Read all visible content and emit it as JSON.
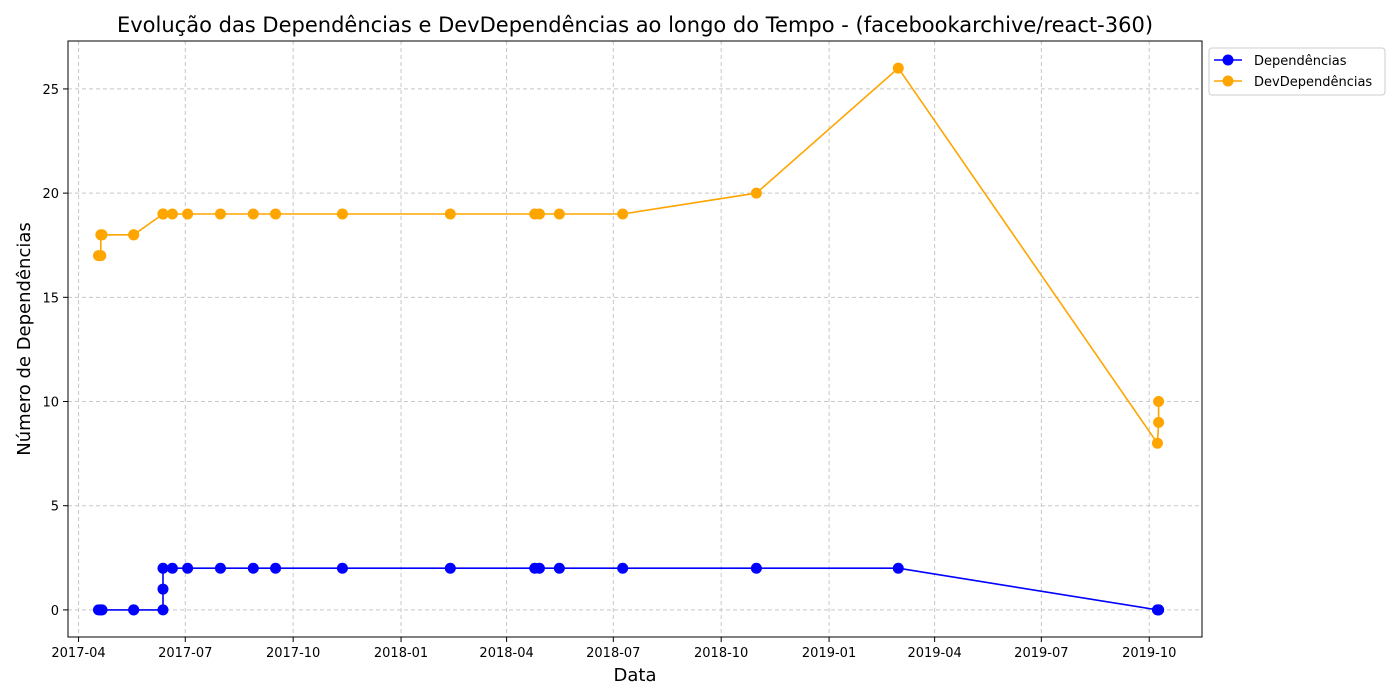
{
  "chart_data": {
    "type": "line",
    "title": "Evolução das Dependências e DevDependências ao longo do Tempo - (facebookarchive/react-360)",
    "xlabel": "Data",
    "ylabel": "Número de Dependências",
    "x_is_date": true,
    "xlim": [
      "2017-03-23",
      "2019-11-15"
    ],
    "ylim": [
      -1.3,
      27.3
    ],
    "x_ticks": [
      "2017-04-01",
      "2017-07-01",
      "2017-10-01",
      "2018-01-01",
      "2018-04-01",
      "2018-07-01",
      "2018-10-01",
      "2019-01-01",
      "2019-04-01",
      "2019-07-01",
      "2019-10-01"
    ],
    "x_tick_labels": [
      "2017-04",
      "2017-07",
      "2017-10",
      "2018-01",
      "2018-04",
      "2018-07",
      "2018-10",
      "2019-01",
      "2019-04",
      "2019-07",
      "2019-10"
    ],
    "y_ticks": [
      0,
      5,
      10,
      15,
      20,
      25
    ],
    "grid": true,
    "legend_position": "top-right, outside plot",
    "series": [
      {
        "name": "Dependências",
        "color": "#0000ff",
        "x": [
          "2017-04-18",
          "2017-04-20",
          "2017-04-20",
          "2017-04-21",
          "2017-05-18",
          "2017-05-18",
          "2017-06-12",
          "2017-06-12",
          "2017-06-12",
          "2017-06-20",
          "2017-07-03",
          "2017-07-31",
          "2017-08-28",
          "2017-09-16",
          "2017-11-12",
          "2018-02-12",
          "2018-04-25",
          "2018-04-29",
          "2018-05-16",
          "2018-07-09",
          "2018-10-31",
          "2019-03-01",
          "2019-10-08",
          "2019-10-09",
          "2019-10-09"
        ],
        "values": [
          0,
          0,
          0,
          0,
          0,
          0,
          0,
          1,
          2,
          2,
          2,
          2,
          2,
          2,
          2,
          2,
          2,
          2,
          2,
          2,
          2,
          2,
          0,
          0,
          0
        ]
      },
      {
        "name": "DevDependências",
        "color": "#ffa500",
        "x": [
          "2017-04-18",
          "2017-04-20",
          "2017-04-20",
          "2017-04-21",
          "2017-05-18",
          "2017-05-18",
          "2017-06-12",
          "2017-06-12",
          "2017-06-12",
          "2017-06-20",
          "2017-07-03",
          "2017-07-31",
          "2017-08-28",
          "2017-09-16",
          "2017-11-12",
          "2018-02-12",
          "2018-04-25",
          "2018-04-29",
          "2018-05-16",
          "2018-07-09",
          "2018-10-31",
          "2019-03-01",
          "2019-10-08",
          "2019-10-09",
          "2019-10-09"
        ],
        "values": [
          17,
          17,
          18,
          18,
          18,
          18,
          19,
          19,
          19,
          19,
          19,
          19,
          19,
          19,
          19,
          19,
          19,
          19,
          19,
          19,
          20,
          26,
          8,
          9,
          10
        ]
      }
    ]
  }
}
